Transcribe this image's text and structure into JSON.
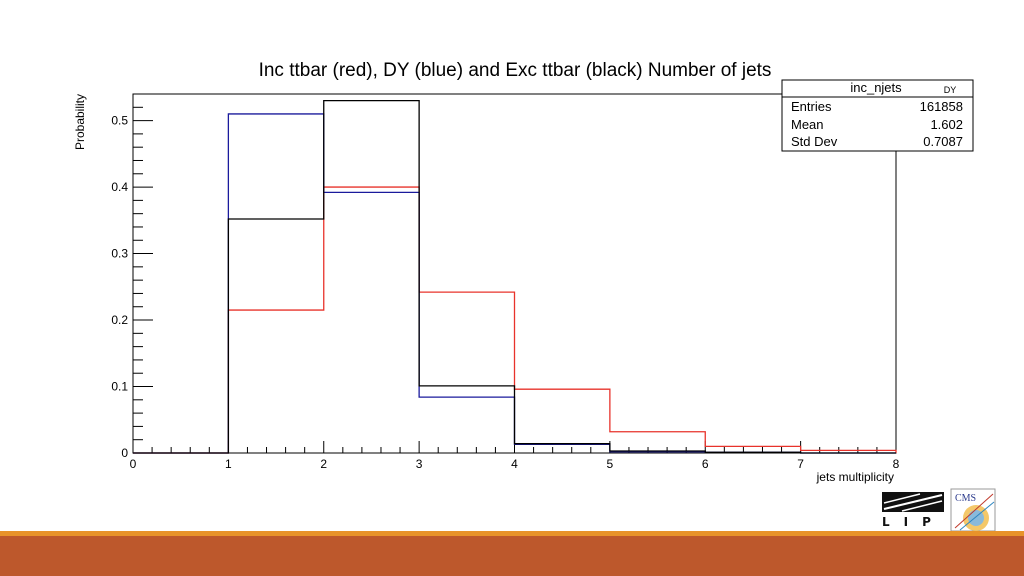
{
  "chart_data": {
    "type": "line",
    "title": "Inc ttbar (red), DY (blue) and Exc ttbar (black) Number of jets",
    "xlabel": "jets multiplicity",
    "ylabel": "Probability",
    "xlim": [
      0,
      8
    ],
    "ylim": [
      0,
      0.54
    ],
    "x_ticks": [
      "0",
      "1",
      "2",
      "3",
      "4",
      "5",
      "6",
      "7",
      "8"
    ],
    "y_ticks": [
      "0",
      "0.1",
      "0.2",
      "0.3",
      "0.4",
      "0.5"
    ],
    "bin_edges": [
      0,
      1,
      2,
      3,
      4,
      5,
      6,
      7,
      8
    ],
    "series": [
      {
        "values": [
          0,
          0.215,
          0.4,
          0.242,
          0.096,
          0.032,
          0.01,
          0.004
        ],
        "color": "#e8332b"
      },
      {
        "values": [
          0,
          0.51,
          0.392,
          0.084,
          0.013,
          0.002,
          0.001,
          0.0
        ],
        "color": "#1a1a9c"
      },
      {
        "values": [
          0,
          0.352,
          0.53,
          0.101,
          0.014,
          0.003,
          0.001,
          0.0
        ],
        "color": "#000000"
      }
    ],
    "grid": false,
    "stats_box": {
      "name": "inc_njets",
      "sub": "DY",
      "rows": [
        {
          "label": "Entries",
          "value": "161858"
        },
        {
          "label": "Mean",
          "value": "1.602"
        },
        {
          "label": "Std Dev",
          "value": "0.7087"
        }
      ]
    }
  },
  "logos": {
    "lip_text": "LIP",
    "cms_text": "CMS"
  },
  "colors": {
    "footer_band": "#bd582c",
    "footer_line": "#e8932a"
  }
}
